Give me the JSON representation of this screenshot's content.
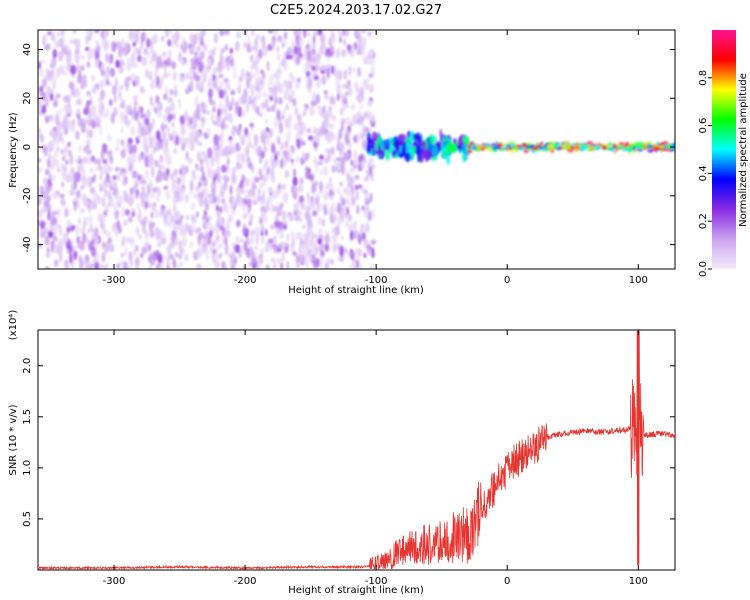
{
  "title": "C2E5.2024.203.17.02.G27",
  "colors": {
    "snr_line": "#e8332f",
    "frame": "#000000",
    "background": "#ffffff"
  },
  "chart_data": [
    {
      "type": "heatmap",
      "xlabel": "Height of straight line (km)",
      "ylabel": "Frequency (Hz)",
      "xlim": [
        -358,
        128
      ],
      "ylim": [
        -50,
        48
      ],
      "xticks": [
        -300,
        -200,
        -100,
        0,
        100
      ],
      "xtick_labels": [
        "-300",
        "-200",
        "-100",
        "0",
        "100"
      ],
      "yticks": [
        -40,
        -20,
        0,
        20,
        40
      ],
      "ytick_labels": [
        "-40",
        "-20",
        "0",
        "20",
        "40"
      ],
      "colorbar": {
        "label": "Normalized spectral amplitude",
        "range": [
          0,
          1
        ],
        "ticks": [
          0.0,
          0.2,
          0.4,
          0.6,
          0.8
        ],
        "tick_labels": [
          "0.0",
          "0.2",
          "0.4",
          "0.6",
          "0.8"
        ],
        "gradient": [
          "#f5ecfb",
          "#c9a3ef",
          "#8a2be2",
          "#0000ff",
          "#00ffff",
          "#00ff00",
          "#ffff00",
          "#ff0000",
          "#ff1493"
        ]
      },
      "regions": [
        {
          "name": "broadband noise",
          "x_range": [
            -358,
            -102
          ],
          "freq_range": [
            -50,
            48
          ],
          "amplitude": 0.1
        },
        {
          "name": "signal onset",
          "x_range": [
            -106,
            -30
          ],
          "freq_center": 0,
          "freq_halfwidth": 6,
          "amplitude": 0.5
        },
        {
          "name": "carrier",
          "x_range": [
            -30,
            128
          ],
          "freq_center": 0,
          "freq_halfwidth": 2,
          "amplitude": 0.85
        }
      ]
    },
    {
      "type": "line",
      "xlabel": "Height of straight line (km)",
      "ylabel": "SNR (10 * v/v)",
      "y_multiplier": "(x10⁴)",
      "xlim": [
        -358,
        128
      ],
      "ylim": [
        0,
        2.35
      ],
      "xticks": [
        -300,
        -200,
        -100,
        0,
        100
      ],
      "xtick_labels": [
        "-300",
        "-200",
        "-100",
        "0",
        "100"
      ],
      "yticks": [
        0.5,
        1.0,
        1.5,
        2.0
      ],
      "ytick_labels": [
        "0.5",
        "1.0",
        "1.5",
        "2.0"
      ],
      "series": [
        {
          "x": [
            -358,
            -300,
            -250,
            -200,
            -150,
            -110,
            -100,
            -90,
            -80,
            -70,
            -60,
            -50,
            -40,
            -30,
            -25,
            -20,
            -15,
            -10,
            -5,
            0,
            10,
            20,
            30,
            40,
            50,
            60,
            70,
            80,
            90,
            95,
            98,
            100,
            102,
            105,
            110,
            120,
            128
          ],
          "y": [
            0.02,
            0.02,
            0.03,
            0.02,
            0.03,
            0.03,
            0.05,
            0.1,
            0.2,
            0.22,
            0.25,
            0.3,
            0.3,
            0.35,
            0.45,
            0.6,
            0.7,
            0.8,
            0.9,
            1.0,
            1.1,
            1.2,
            1.3,
            1.33,
            1.35,
            1.36,
            1.35,
            1.36,
            1.37,
            1.4,
            1.5,
            1.3,
            1.35,
            1.32,
            1.33,
            1.34,
            1.32
          ]
        }
      ]
    }
  ]
}
